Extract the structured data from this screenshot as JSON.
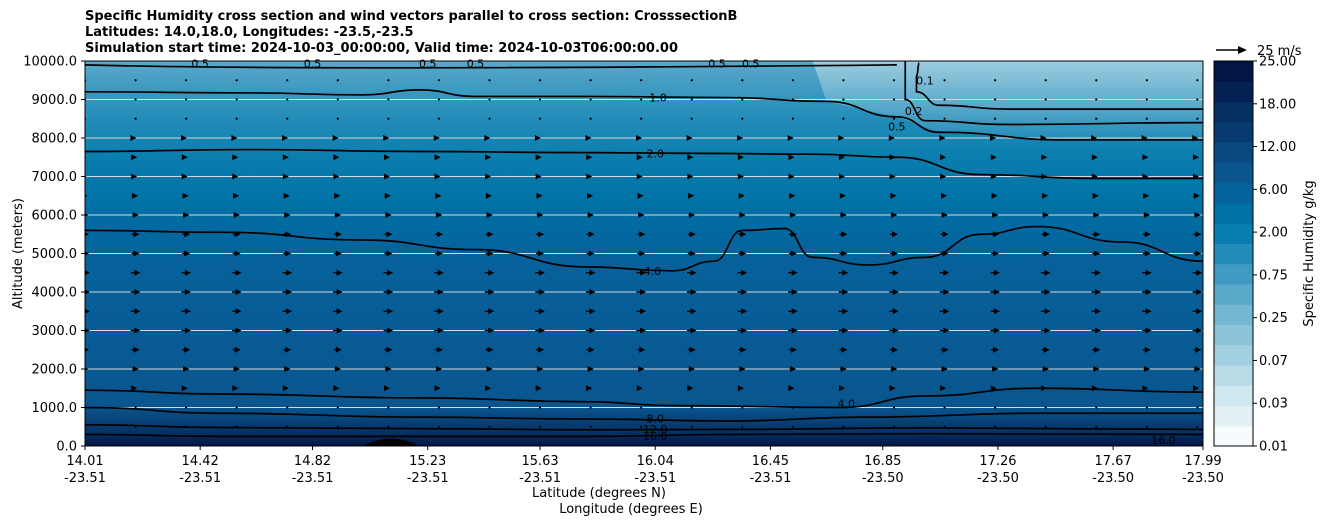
{
  "title_lines": [
    "Specific Humidity cross section and wind vectors parallel to cross section: CrosssectionB",
    "Latitudes: 14.0,18.0, Longitudes: -23.5,-23.5",
    "Simulation start time: 2024-10-03_00:00:00, Valid time: 2024-10-03T06:00:00.00"
  ],
  "quiver_key_label": "25 m/s",
  "colors": {
    "colormap": [
      "#f7fbfd",
      "#e3f1f5",
      "#cfe7ef",
      "#b8dce8",
      "#a2d0e1",
      "#8cc4da",
      "#74b7d2",
      "#5aa9ca",
      "#3f9bc1",
      "#238cb8",
      "#0a7eae",
      "#0070a5",
      "#06629b",
      "#0a558e",
      "#0a4880",
      "#073b70",
      "#052e61",
      "#032152",
      "#021544"
    ],
    "contour_line": "#000000",
    "gridline": "#d8d8d8",
    "vector": "#000000",
    "terrain": "#000000"
  },
  "chart_data": {
    "type": "filled-contour-cross-section",
    "x_label_lat": "Latitude (degrees N)",
    "x_label_lon": "Longitude (degrees E)",
    "ylabel": "Altitude (meters)",
    "ylim": [
      0,
      10000
    ],
    "xlim": [
      14.01,
      17.99
    ],
    "y_ticks": [
      "0.0",
      "1000.0",
      "2000.0",
      "3000.0",
      "4000.0",
      "5000.0",
      "6000.0",
      "7000.0",
      "8000.0",
      "9000.0",
      "10000.0"
    ],
    "x_ticks": [
      {
        "lat": 14.01,
        "lat_label": "14.01",
        "lon_label": "-23.51"
      },
      {
        "lat": 14.42,
        "lat_label": "14.42",
        "lon_label": "-23.51"
      },
      {
        "lat": 14.82,
        "lat_label": "14.82",
        "lon_label": "-23.51"
      },
      {
        "lat": 15.23,
        "lat_label": "15.23",
        "lon_label": "-23.51"
      },
      {
        "lat": 15.63,
        "lat_label": "15.63",
        "lon_label": "-23.51"
      },
      {
        "lat": 16.04,
        "lat_label": "16.04",
        "lon_label": "-23.51"
      },
      {
        "lat": 16.45,
        "lat_label": "16.45",
        "lon_label": "-23.51"
      },
      {
        "lat": 16.85,
        "lat_label": "16.85",
        "lon_label": "-23.50"
      },
      {
        "lat": 17.26,
        "lat_label": "17.26",
        "lon_label": "-23.50"
      },
      {
        "lat": 17.67,
        "lat_label": "17.67",
        "lon_label": "-23.50"
      },
      {
        "lat": 17.99,
        "lat_label": "17.99",
        "lon_label": "-23.50"
      }
    ],
    "colorbar": {
      "label": "Specific Humidity g/kg",
      "tick_labels": [
        "0.01",
        "0.03",
        "0.07",
        "0.25",
        "0.75",
        "2.00",
        "6.00",
        "12.00",
        "18.00",
        "25.00"
      ]
    },
    "contours": [
      {
        "level": "0.2",
        "points": [
          [
            16.98,
            9950
          ],
          [
            16.97,
            9600
          ],
          [
            16.97,
            9200
          ],
          [
            17.05,
            8850
          ],
          [
            17.3,
            8750
          ],
          [
            17.99,
            8750
          ]
        ]
      },
      {
        "level": "0.5",
        "points": [
          [
            16.93,
            10000
          ],
          [
            16.93,
            9500
          ],
          [
            16.93,
            9000
          ],
          [
            17.0,
            8450
          ],
          [
            17.3,
            8350
          ],
          [
            17.99,
            8400
          ]
        ]
      },
      {
        "level": "1.0",
        "points": [
          [
            14.01,
            9200
          ],
          [
            14.6,
            9170
          ],
          [
            15.0,
            9120
          ],
          [
            15.2,
            9250
          ],
          [
            15.4,
            9080
          ],
          [
            15.8,
            9080
          ],
          [
            16.3,
            9050
          ],
          [
            16.65,
            8950
          ],
          [
            16.9,
            8550
          ],
          [
            17.05,
            8150
          ],
          [
            17.5,
            7950
          ],
          [
            17.99,
            7950
          ]
        ]
      },
      {
        "level": "2.0",
        "points": [
          [
            14.01,
            7650
          ],
          [
            14.6,
            7700
          ],
          [
            15.2,
            7650
          ],
          [
            15.8,
            7620
          ],
          [
            16.2,
            7600
          ],
          [
            16.6,
            7580
          ],
          [
            16.9,
            7500
          ],
          [
            17.2,
            7050
          ],
          [
            17.6,
            6950
          ],
          [
            17.99,
            6950
          ]
        ]
      },
      {
        "level": "4.0",
        "points": [
          [
            14.01,
            5600
          ],
          [
            14.5,
            5550
          ],
          [
            15.0,
            5350
          ],
          [
            15.4,
            5100
          ],
          [
            15.8,
            4650
          ],
          [
            16.1,
            4550
          ],
          [
            16.25,
            4800
          ],
          [
            16.35,
            5600
          ],
          [
            16.5,
            5650
          ],
          [
            16.6,
            4900
          ],
          [
            16.8,
            4700
          ],
          [
            17.0,
            4900
          ],
          [
            17.2,
            5500
          ],
          [
            17.4,
            5700
          ],
          [
            17.7,
            5300
          ],
          [
            17.99,
            4800
          ]
        ]
      },
      {
        "level": "4.0",
        "points": [
          [
            16.7,
            1000
          ],
          [
            17.0,
            1300
          ],
          [
            17.4,
            1500
          ],
          [
            17.99,
            1400
          ]
        ]
      },
      {
        "level": "6.0",
        "points": [
          [
            14.01,
            1450
          ],
          [
            14.5,
            1350
          ],
          [
            15.2,
            1250
          ],
          [
            15.8,
            1150
          ],
          [
            16.1,
            1050
          ],
          [
            16.7,
            1000
          ]
        ]
      },
      {
        "level": "8.0",
        "points": [
          [
            14.01,
            1000
          ],
          [
            14.5,
            850
          ],
          [
            15.2,
            750
          ],
          [
            15.8,
            700
          ],
          [
            16.3,
            650
          ],
          [
            16.8,
            750
          ],
          [
            17.4,
            850
          ],
          [
            17.99,
            850
          ]
        ]
      },
      {
        "level": "12.0",
        "points": [
          [
            14.01,
            550
          ],
          [
            14.5,
            480
          ],
          [
            15.2,
            450
          ],
          [
            15.8,
            420
          ],
          [
            16.3,
            430
          ],
          [
            17.0,
            470
          ],
          [
            17.99,
            430
          ]
        ]
      },
      {
        "level": "16.0",
        "points": [
          [
            14.01,
            300
          ],
          [
            14.5,
            250
          ],
          [
            15.2,
            250
          ],
          [
            15.8,
            250
          ],
          [
            16.3,
            300
          ],
          [
            17.0,
            320
          ],
          [
            17.99,
            300
          ]
        ]
      }
    ],
    "contour_labels": [
      {
        "text": "0.5",
        "lat": 14.42,
        "z": 9930
      },
      {
        "text": "0.5",
        "lat": 14.82,
        "z": 9930
      },
      {
        "text": "0.5",
        "lat": 15.23,
        "z": 9930
      },
      {
        "text": "0.5",
        "lat": 15.4,
        "z": 9930
      },
      {
        "text": "0.5",
        "lat": 16.26,
        "z": 9930
      },
      {
        "text": "0.5",
        "lat": 16.38,
        "z": 9930
      },
      {
        "text": "1.0",
        "lat": 16.05,
        "z": 9050
      },
      {
        "text": "2.0",
        "lat": 16.04,
        "z": 7600
      },
      {
        "text": "4.0",
        "lat": 16.03,
        "z": 4550
      },
      {
        "text": "4.0",
        "lat": 16.72,
        "z": 1100
      },
      {
        "text": "8.0",
        "lat": 16.04,
        "z": 720
      },
      {
        "text": "12.0",
        "lat": 16.04,
        "z": 440
      },
      {
        "text": "16.0",
        "lat": 16.04,
        "z": 260
      },
      {
        "text": "0.1",
        "lat": 17.0,
        "z": 9500
      },
      {
        "text": "0.2",
        "lat": 16.96,
        "z": 8700
      },
      {
        "text": "0.5",
        "lat": 16.9,
        "z": 8300
      },
      {
        "text": "16.0",
        "lat": 17.85,
        "z": 150
      }
    ],
    "terrain": {
      "lat_start": 15.0,
      "lat_peak": 15.1,
      "lat_end": 15.2,
      "height_m": 180
    },
    "wind_vectors": {
      "lats": [
        14.01,
        14.19,
        14.37,
        14.55,
        14.73,
        14.91,
        15.09,
        15.27,
        15.45,
        15.63,
        15.81,
        15.99,
        16.17,
        16.35,
        16.53,
        16.71,
        16.89,
        17.07,
        17.25,
        17.43,
        17.61,
        17.79,
        17.97
      ],
      "altitudes": [
        500,
        1000,
        1500,
        2000,
        2500,
        3000,
        3500,
        4000,
        4500,
        5000,
        5500,
        6000,
        6500,
        7000,
        7500,
        8000,
        8500,
        9000,
        9500
      ],
      "speed_ms_by_altitude": [
        0,
        0,
        2,
        4,
        5,
        6,
        6,
        6,
        6,
        5,
        5,
        4,
        3,
        2,
        2,
        1,
        0,
        0,
        0
      ],
      "reference_speed_ms": 25
    }
  }
}
